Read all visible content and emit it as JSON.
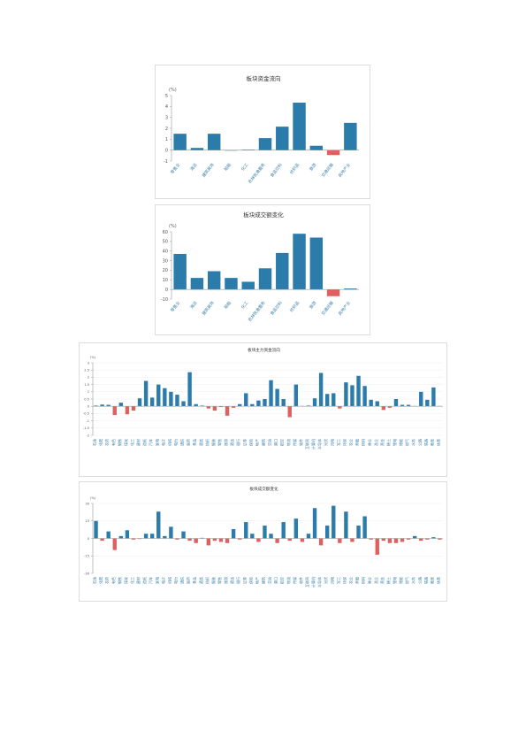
{
  "colors": {
    "positive": "#2b7bab",
    "negative": "#e06060",
    "axis": "#999999",
    "grid": "#eeeeee",
    "label": "#3a7fa8"
  },
  "chart_data": [
    {
      "type": "bar",
      "title": "板块资金流向",
      "unit": "(%)",
      "ylim": [
        -1,
        5
      ],
      "yticks": [
        -1,
        0,
        1,
        2,
        3,
        4,
        5
      ],
      "grid": false,
      "categories": [
        "零售业",
        "海运",
        "建筑装饰",
        "船舶",
        "化工",
        "农林牧渔服务",
        "食品饮料",
        "纺织品",
        "旅游",
        "交通运输",
        "房地产业"
      ],
      "values": [
        1.5,
        0.2,
        1.5,
        0.0,
        0.05,
        1.1,
        2.15,
        4.35,
        0.4,
        -0.45,
        2.5
      ]
    },
    {
      "type": "bar",
      "title": "板块成交额变化",
      "unit": "(%)",
      "ylim": [
        -10,
        60
      ],
      "yticks": [
        -10,
        0,
        10,
        20,
        30,
        40,
        50,
        60
      ],
      "grid": false,
      "categories": [
        "零售业",
        "海运",
        "建筑装饰",
        "船舶",
        "化工",
        "农林牧渔服务",
        "食品饮料",
        "纺织品",
        "旅游",
        "交通运输",
        "房地产业"
      ],
      "values": [
        37,
        12,
        19,
        12,
        8,
        22,
        38,
        58,
        54,
        -7,
        1
      ]
    },
    {
      "type": "bar",
      "title": "板块主力资金流向",
      "unit": "(%)",
      "ylim": [
        -2,
        3
      ],
      "yticks": [
        -2,
        -1.5,
        -1,
        -0.5,
        0,
        0.5,
        1,
        1.5,
        2,
        2.5,
        3
      ],
      "grid": true,
      "categories": [
        "石油",
        "化肥",
        "农药",
        "有色",
        "钢铁",
        "煤炭",
        "化工",
        "建材",
        "造纸",
        "汽车",
        "家电",
        "电子",
        "机械",
        "电力",
        "通信",
        "医药",
        "食品",
        "酒类",
        "纺织",
        "服装",
        "零售",
        "旅游",
        "酒店",
        "银行",
        "证券",
        "保险",
        "地产",
        "建筑",
        "交运",
        "港口",
        "航空",
        "物流",
        "传媒",
        "软件",
        "互联网",
        "计算机",
        "半导体",
        "光伏",
        "风电",
        "军工",
        "环保",
        "农业",
        "养殖",
        "饲料",
        "林业",
        "渔业",
        "黄金",
        "稀土",
        "锂电",
        "储能",
        "燃气",
        "水务",
        "公路",
        "铁路",
        "教育",
        "体育"
      ],
      "values": [
        0.05,
        0.12,
        0.1,
        -0.6,
        0.25,
        -0.55,
        -0.3,
        0.55,
        1.75,
        0.6,
        1.5,
        1.25,
        1.0,
        0.8,
        0.35,
        2.35,
        0.15,
        0.05,
        -0.15,
        -0.3,
        -0.05,
        -0.65,
        -0.1,
        0.15,
        0.9,
        0.15,
        0.4,
        0.5,
        1.8,
        1.2,
        0.5,
        -0.75,
        1.5,
        0.02,
        0.05,
        0.55,
        2.3,
        0.85,
        0.9,
        -0.15,
        1.65,
        1.45,
        2.1,
        1.4,
        0.45,
        0.35,
        -0.25,
        -0.1,
        0.5,
        0.1,
        0.1,
        0.02,
        1.0,
        0.45,
        1.3,
        0.02
      ]
    },
    {
      "type": "bar",
      "title": "板块成交额变化",
      "unit": "(%)",
      "ylim": [
        -30,
        30
      ],
      "yticks": [
        -30,
        -15,
        0,
        15,
        30
      ],
      "grid": true,
      "categories": [
        "石油",
        "化肥",
        "农药",
        "有色",
        "钢铁",
        "煤炭",
        "化工",
        "建材",
        "造纸",
        "汽车",
        "家电",
        "电子",
        "机械",
        "电力",
        "通信",
        "医药",
        "食品",
        "酒类",
        "纺织",
        "服装",
        "零售",
        "旅游",
        "酒店",
        "银行",
        "证券",
        "保险",
        "地产",
        "建筑",
        "交运",
        "港口",
        "航空",
        "物流",
        "传媒",
        "软件",
        "互联网",
        "计算机",
        "半导体",
        "光伏",
        "风电",
        "军工",
        "环保",
        "农业",
        "养殖",
        "饲料",
        "林业",
        "渔业",
        "黄金",
        "稀土",
        "锂电",
        "储能",
        "燃气",
        "水务",
        "公路",
        "铁路",
        "教育",
        "体育"
      ],
      "values": [
        15,
        -2,
        6,
        -10,
        2,
        7,
        -1,
        -0.5,
        4,
        4,
        23,
        2,
        10,
        -1,
        6,
        -2,
        -4,
        0.5,
        -6,
        -2,
        -3,
        -4,
        8,
        -1,
        14,
        4,
        -3,
        11,
        4,
        -4,
        14,
        -2,
        17,
        -3,
        4,
        26,
        -6,
        11,
        28,
        -4,
        23,
        -3,
        11,
        19,
        -1,
        -14,
        -2,
        -4,
        -4,
        -3,
        -1,
        2,
        -2,
        -1,
        1,
        -1
      ]
    }
  ]
}
